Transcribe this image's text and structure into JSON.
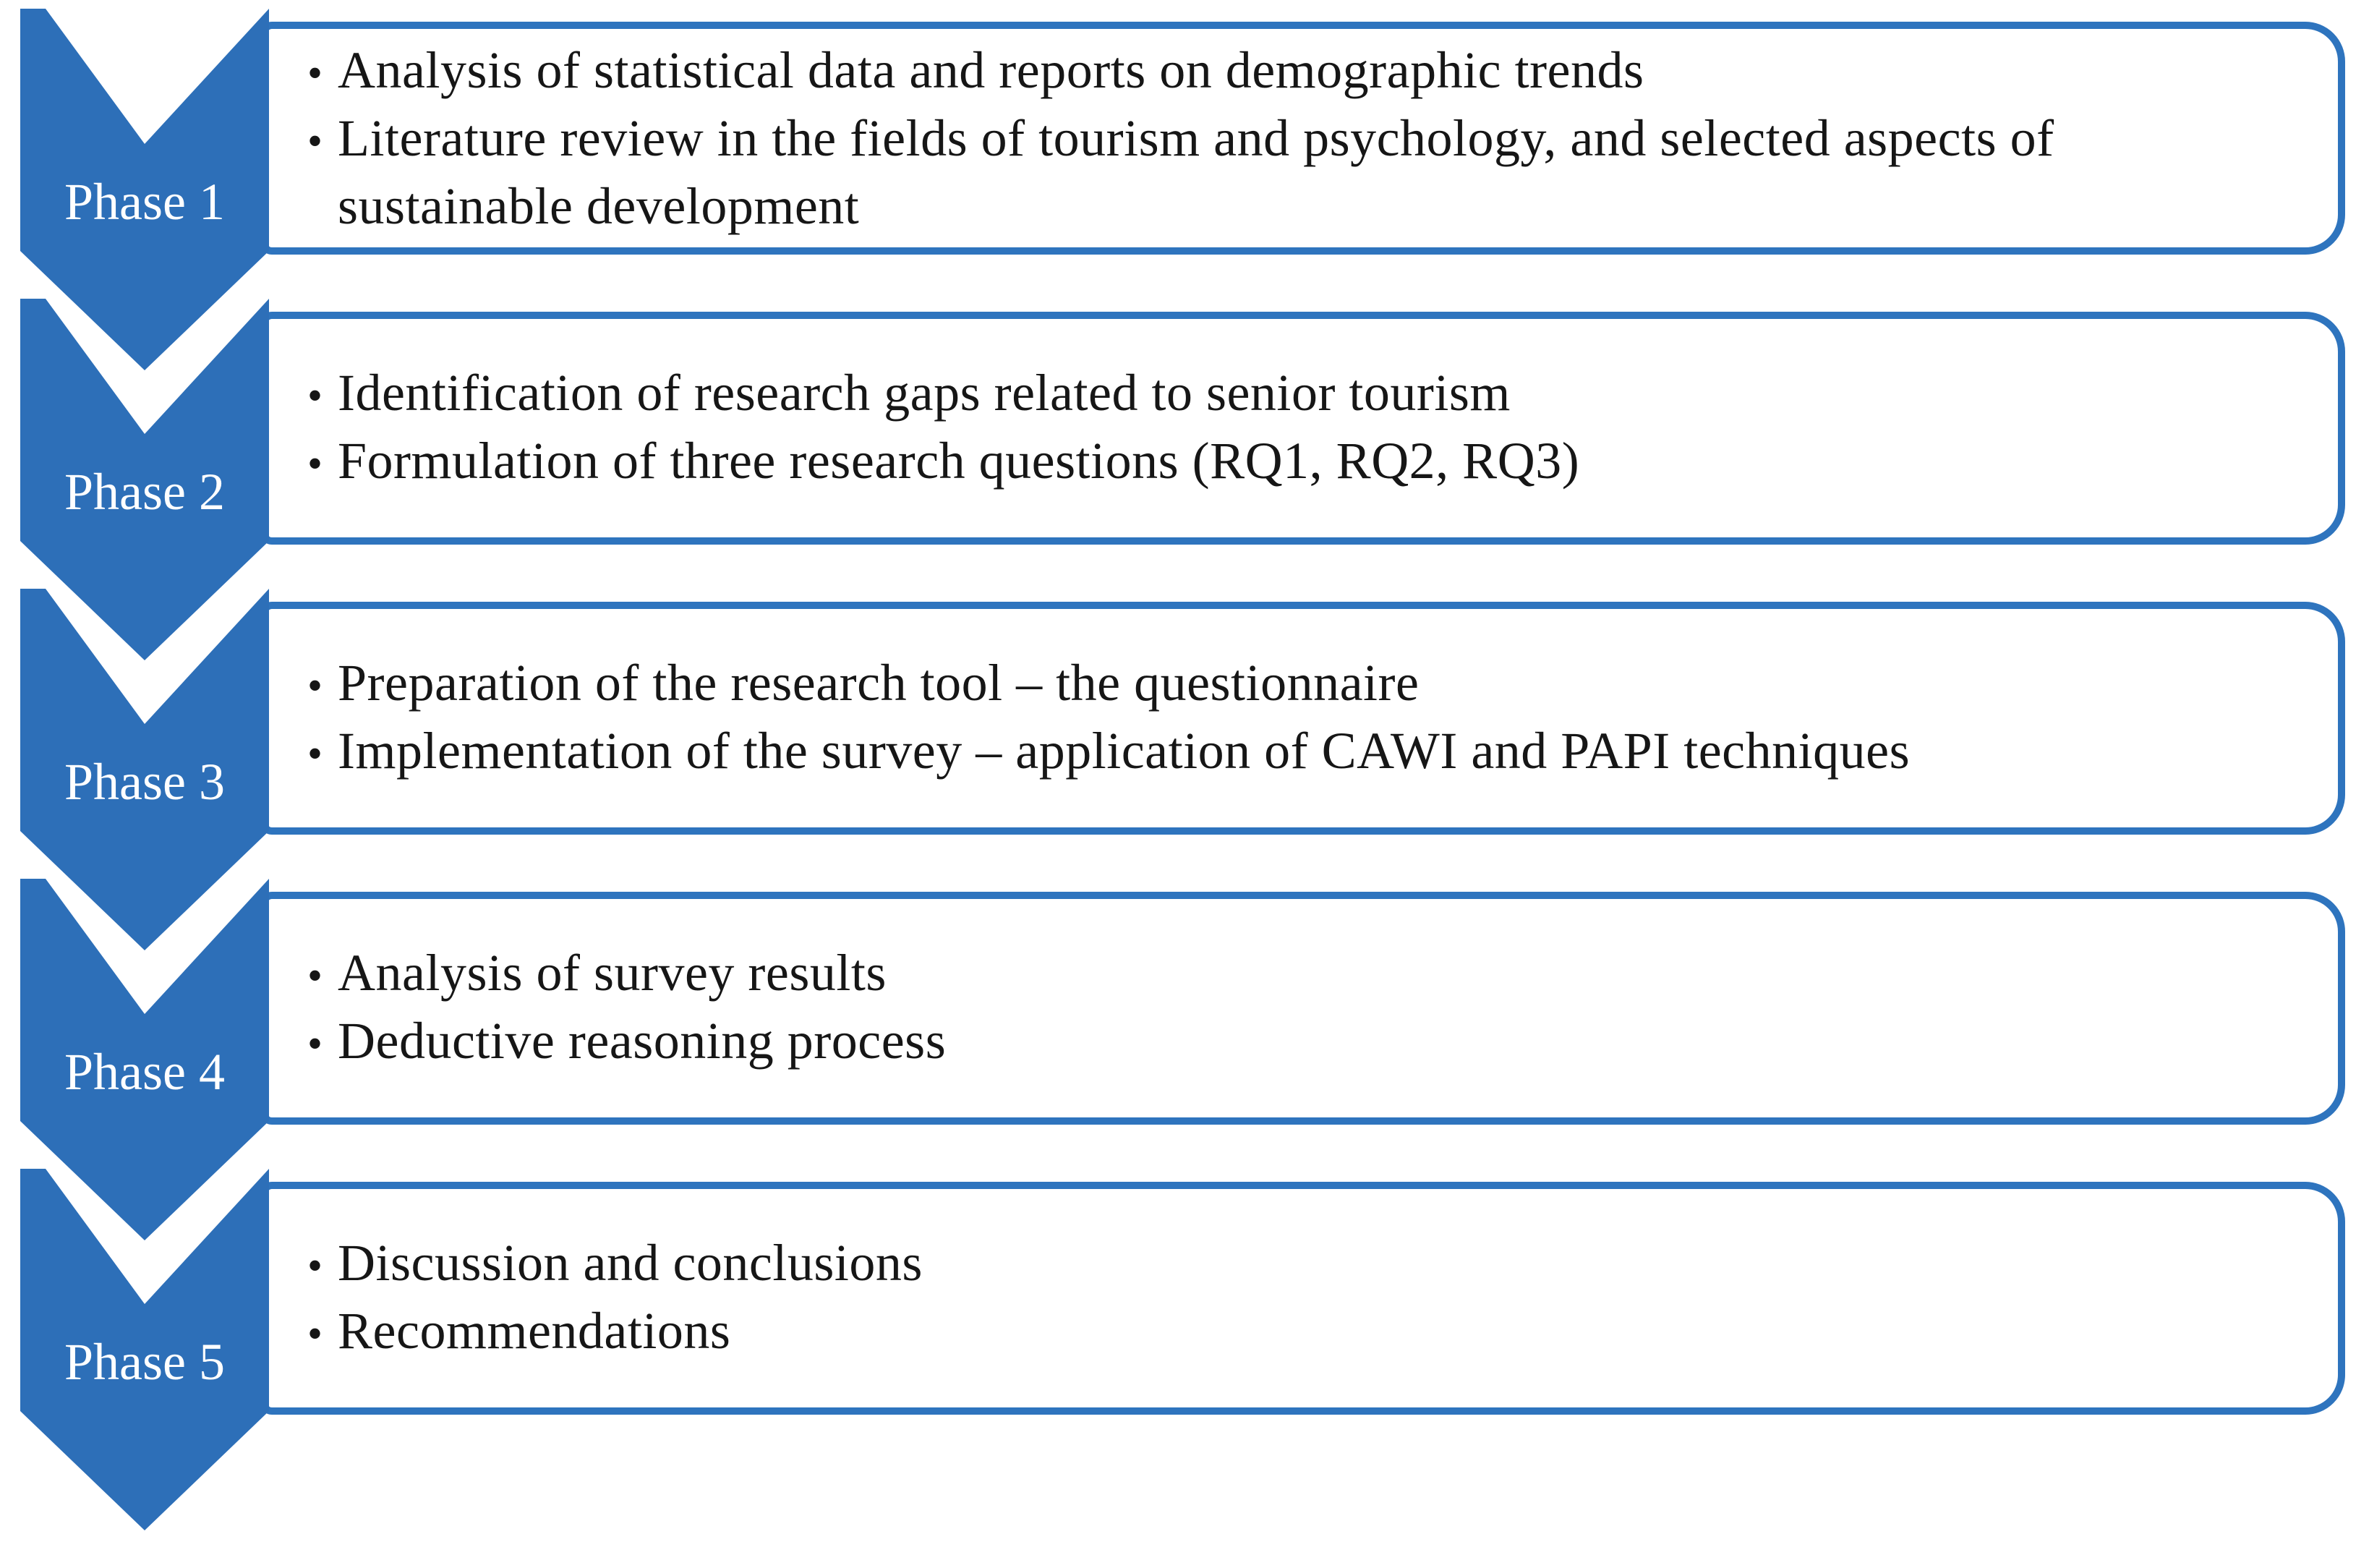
{
  "figure": {
    "type": "vertical-chevron-process-diagram",
    "phase_count": 5
  },
  "colors": {
    "chevron_fill": "#2D6FB8",
    "box_border": "#2E74BE",
    "body_text": "#161616",
    "label_text": "#FFFFFF",
    "background": "#FFFFFF"
  },
  "bullet_glyph": "•",
  "phases": [
    {
      "label": "Phase 1",
      "items": [
        {
          "lines": [
            "Analysis of statistical data and reports on demographic trends"
          ]
        },
        {
          "lines": [
            "Literature review in the fields of tourism and psychology, and selected aspects of",
            "sustainable development"
          ]
        }
      ]
    },
    {
      "label": "Phase 2",
      "items": [
        {
          "lines": [
            "Identification of research gaps related to senior tourism"
          ]
        },
        {
          "lines": [
            "Formulation of three research questions (RQ1, RQ2, RQ3)"
          ]
        }
      ]
    },
    {
      "label": "Phase 3",
      "items": [
        {
          "lines": [
            "Preparation of the research tool – the questionnaire"
          ]
        },
        {
          "lines": [
            "Implementation of the survey – application of CAWI and PAPI techniques"
          ]
        }
      ]
    },
    {
      "label": "Phase 4",
      "items": [
        {
          "lines": [
            "Analysis of survey results"
          ]
        },
        {
          "lines": [
            "Deductive reasoning process"
          ]
        }
      ]
    },
    {
      "label": "Phase 5",
      "items": [
        {
          "lines": [
            "Discussion and conclusions"
          ]
        },
        {
          "lines": [
            "Recommendations"
          ]
        }
      ]
    }
  ]
}
